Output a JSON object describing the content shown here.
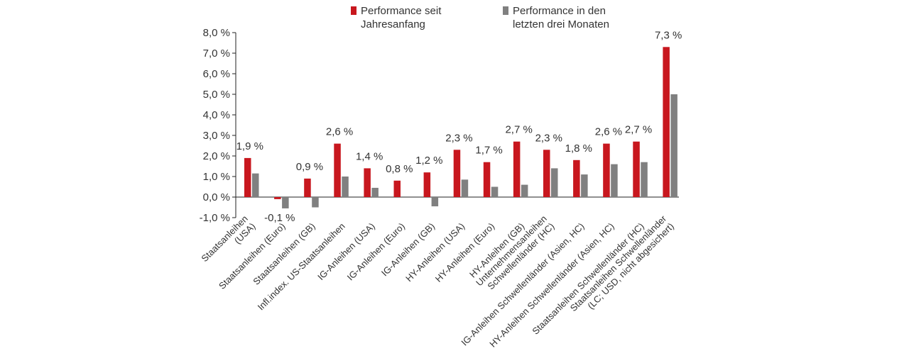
{
  "legend": {
    "ytd_line1": "Performance seit",
    "ytd_line2": "Jahresanfang",
    "q3m_line1": "Performance in den",
    "q3m_line2": "letzten drei Monaten"
  },
  "colors": {
    "ytd": "#c8171e",
    "q3m": "#808080"
  },
  "chart_data": {
    "type": "bar",
    "title": "",
    "xlabel": "",
    "ylabel": "",
    "ylim": [
      -1,
      8
    ],
    "yticks": [
      "-1,0 %",
      "0,0 %",
      "1,0 %",
      "2,0 %",
      "3,0 %",
      "4,0 %",
      "5,0 %",
      "6,0 %",
      "7,0 %",
      "8,0 %"
    ],
    "grid": false,
    "legend_position": "top",
    "categories": [
      [
        "Staatsanleihen",
        "(USA)"
      ],
      [
        "Staatsanleihen (Euro)"
      ],
      [
        "Staatsanleihen (GB)"
      ],
      [
        "Infl.index. US-Staatsanleihen"
      ],
      [
        "IG-Anleihen (USA)"
      ],
      [
        "IG-Anleihen (Euro)"
      ],
      [
        "IG-Anleihen (GB)"
      ],
      [
        "HY-Anleihen (USA)"
      ],
      [
        "HY-Anleihen (Euro)"
      ],
      [
        "HY-Anleihen (GB)"
      ],
      [
        "Unternehmensanleihen",
        "Schwellenländer (HC)"
      ],
      [
        "IG-Anleihen Schwellenländer (Asien, HC)"
      ],
      [
        "HY-Anleihen Schwellenländer (Asien, HC)"
      ],
      [
        "Staatsanleihen Schwellenländer (HC)"
      ],
      [
        "Staatsanleihen Schwellenländer",
        "(LC; USD, nicht abgesichert)"
      ]
    ],
    "series": [
      {
        "name": "Performance seit Jahresanfang",
        "values": [
          1.9,
          -0.1,
          0.9,
          2.6,
          1.4,
          0.8,
          1.2,
          2.3,
          1.7,
          2.7,
          2.3,
          1.8,
          2.6,
          2.7,
          7.3
        ]
      },
      {
        "name": "Performance in den letzten drei Monaten",
        "values": [
          1.15,
          -0.55,
          -0.5,
          1.0,
          0.45,
          0.0,
          -0.45,
          0.85,
          0.5,
          0.6,
          1.4,
          1.1,
          1.6,
          1.7,
          5.0
        ]
      }
    ],
    "value_labels": [
      "1,9 %",
      "-0,1 %",
      "0,9 %",
      "2,6 %",
      "1,4 %",
      "0,8 %",
      "1,2 %",
      "2,3 %",
      "1,7 %",
      "2,7 %",
      "2,3 %",
      "1,8 %",
      "2,6 %",
      "2,7 %",
      "7,3 %"
    ]
  }
}
